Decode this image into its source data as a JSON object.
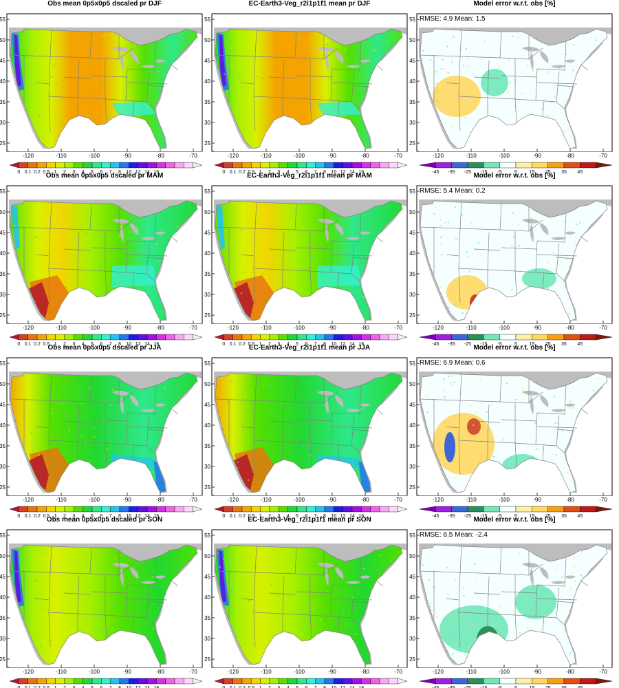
{
  "figure": {
    "columns": [
      {
        "kind": "precip",
        "title_prefix": "Obs mean 0p5x0p5 dscaled pr"
      },
      {
        "kind": "precip",
        "title_prefix": "EC-Earth3-Veg_r2i1p1f1 mean pr"
      },
      {
        "kind": "error",
        "title": "Model error w.r.t. obs [%]"
      }
    ],
    "rows": [
      {
        "season": "DJF",
        "rmse_label": "RMSE: 4.9  Mean: 1.5"
      },
      {
        "season": "MAM",
        "rmse_label": "RMSE: 5.4  Mean: 0.2"
      },
      {
        "season": "JJA",
        "rmse_label": "RMSE: 6.9  Mean: 0.6"
      },
      {
        "season": "SON",
        "rmse_label": "RMSE: 6.5  Mean: -2.4"
      }
    ],
    "lat_ticks": [
      "55",
      "50",
      "45",
      "40",
      "35",
      "30",
      "25"
    ],
    "lon_ticks": [
      "-120",
      "-110",
      "-100",
      "-90",
      "-80",
      "-70"
    ],
    "precip_colorbar": {
      "labels": [
        "0",
        "0.1",
        "0.2",
        "0.5",
        "1",
        "2",
        "3",
        "4",
        "5",
        "6",
        "7",
        "8",
        "10",
        "12",
        "14",
        "16"
      ],
      "colors": [
        "#b2182b",
        "#d6402a",
        "#e8760f",
        "#f5a300",
        "#f2d500",
        "#d8f000",
        "#a6f000",
        "#55e000",
        "#22d830",
        "#2ee88a",
        "#33f0d2",
        "#22c3f0",
        "#2678f0",
        "#1e1ee0",
        "#6010e0",
        "#a010e8",
        "#d830e8",
        "#f060e8",
        "#f8a8f0",
        "#f8d8f8",
        "#f0f0ff"
      ]
    },
    "error_colorbar": {
      "labels": [
        "-45",
        "-35",
        "-25",
        "-15",
        "-5",
        "5",
        "15",
        "25",
        "35",
        "45"
      ],
      "colors": [
        "#7a00b4",
        "#a020e0",
        "#3f66d8",
        "#2a8f5c",
        "#70e8b8",
        "#f5ffff",
        "#fff0a8",
        "#ffd860",
        "#f8a010",
        "#e05010",
        "#c01818",
        "#7a1a08"
      ]
    },
    "style": {
      "land_mask": "#bdbdbd",
      "state_lines": "#808080",
      "frame": "#000000"
    }
  }
}
